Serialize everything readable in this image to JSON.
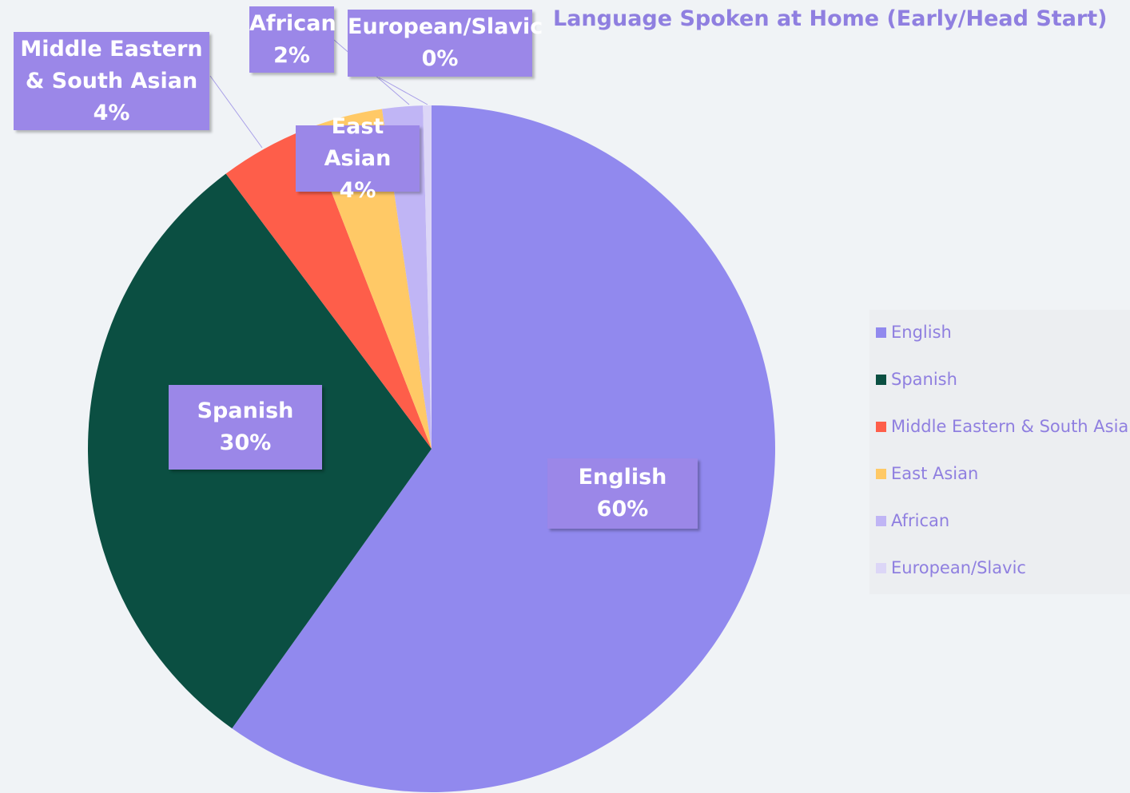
{
  "chart_data": {
    "type": "pie",
    "title": "Language Spoken at Home (Early/Head Start)",
    "categories": [
      "English",
      "Spanish",
      "Middle Eastern & South Asian",
      "East Asian",
      "African",
      "European/Slavic"
    ],
    "values": [
      59.8,
      29.9,
      4.3,
      3.6,
      1.9,
      0.4
    ],
    "value_labels": [
      "60%",
      "30%",
      "4%",
      "4%",
      "2%",
      "0%"
    ],
    "colors": [
      "#9189ee",
      "#0b4f42",
      "#fe5e4a",
      "#ffc966",
      "#c0b5f5",
      "#dcd6f7"
    ],
    "legend": "right"
  }
}
